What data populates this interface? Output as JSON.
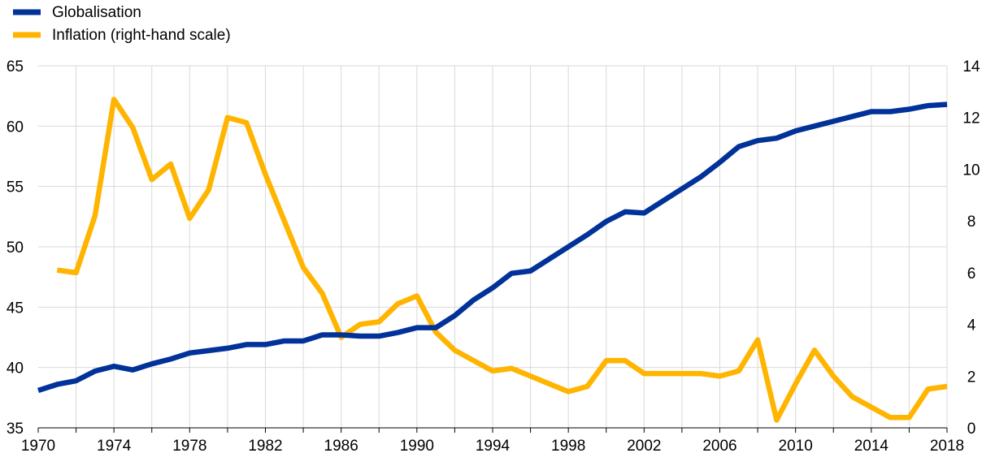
{
  "chart_data": {
    "type": "line",
    "legend_position": "top-left",
    "grid": true,
    "x": [
      1970,
      1971,
      1972,
      1973,
      1974,
      1975,
      1976,
      1977,
      1978,
      1979,
      1980,
      1981,
      1982,
      1983,
      1984,
      1985,
      1986,
      1987,
      1988,
      1989,
      1990,
      1991,
      1992,
      1993,
      1994,
      1995,
      1996,
      1997,
      1998,
      1999,
      2000,
      2001,
      2002,
      2003,
      2004,
      2005,
      2006,
      2007,
      2008,
      2009,
      2010,
      2011,
      2012,
      2013,
      2014,
      2015,
      2016,
      2017,
      2018
    ],
    "x_ticks": [
      "1970",
      "1974",
      "1978",
      "1982",
      "1986",
      "1990",
      "1994",
      "1998",
      "2002",
      "2006",
      "2010",
      "2014",
      "2018"
    ],
    "xlim": [
      1970,
      2018
    ],
    "left_axis": {
      "ylim": [
        35,
        65
      ],
      "ticks": [
        "35",
        "40",
        "45",
        "50",
        "55",
        "60",
        "65"
      ]
    },
    "right_axis": {
      "ylim": [
        0,
        14
      ],
      "ticks": [
        "0",
        "2",
        "4",
        "6",
        "8",
        "10",
        "12",
        "14"
      ]
    },
    "series": [
      {
        "name": "Globalisation",
        "axis": "left",
        "color": "#003299",
        "values": [
          38.1,
          38.6,
          38.9,
          39.7,
          40.1,
          39.8,
          40.3,
          40.7,
          41.2,
          41.4,
          41.6,
          41.9,
          41.9,
          42.2,
          42.2,
          42.7,
          42.7,
          42.6,
          42.6,
          42.9,
          43.3,
          43.3,
          44.3,
          45.6,
          46.6,
          47.8,
          48.0,
          49.0,
          50.0,
          51.0,
          52.1,
          52.9,
          52.8,
          53.8,
          54.8,
          55.8,
          57.0,
          58.3,
          58.8,
          59.0,
          59.6,
          60.0,
          60.4,
          60.8,
          61.2,
          61.2,
          61.4,
          61.7,
          61.8
        ]
      },
      {
        "name": "Inflation (right-hand scale)",
        "axis": "right",
        "color": "#FFB400",
        "values": [
          null,
          6.1,
          6.0,
          8.2,
          12.7,
          11.6,
          9.6,
          10.2,
          8.1,
          9.2,
          12.0,
          11.8,
          9.8,
          8.0,
          6.2,
          5.2,
          3.5,
          4.0,
          4.1,
          4.8,
          5.1,
          3.7,
          3.0,
          2.6,
          2.2,
          2.3,
          2.0,
          1.7,
          1.4,
          1.6,
          2.6,
          2.6,
          2.1,
          2.1,
          2.1,
          2.1,
          2.0,
          2.2,
          3.4,
          0.3,
          1.7,
          3.0,
          2.0,
          1.2,
          0.8,
          0.4,
          0.4,
          1.5,
          1.6
        ]
      }
    ]
  }
}
